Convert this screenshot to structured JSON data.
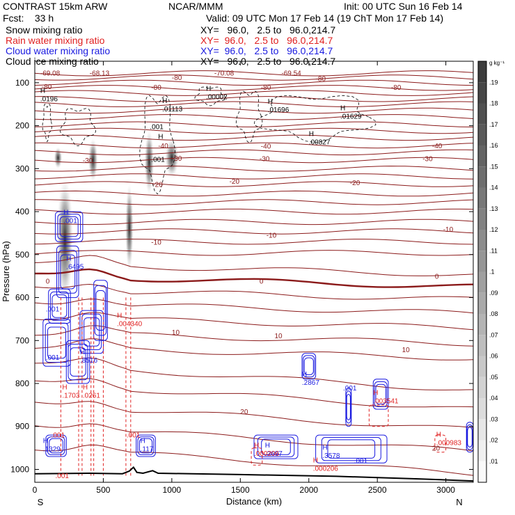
{
  "header": {
    "title": "CONTRAST 15km ARW",
    "institution": "NCAR/MMM",
    "init": "Init: 00 UTC Sun 16 Feb 14",
    "fcst": "Fcst:    33 h",
    "valid": "Valid: 09 UTC Mon 17 Feb 14 (19 ChT Mon 17 Feb 14)",
    "fields": [
      {
        "name": "Snow mixing ratio",
        "xy": "XY=   96.0,   2.5 to   96.0,214.7",
        "color": "#000000"
      },
      {
        "name": "Rain water mixing ratio",
        "xy": "XY=  96.0,   2.5 to   96.0,214.7",
        "color": "#e02020"
      },
      {
        "name": "Cloud water mixing ratio",
        "xy": "XY=  96.0,   2.5 to   96.0,214.7",
        "color": "#1a1ae0"
      },
      {
        "name": "Cloud ice mixing ratio",
        "xy": "XY=   96.0,   2.5 to   96.0,214.7",
        "color": "#000000"
      }
    ]
  },
  "chart_data": {
    "type": "contour",
    "xlabel": "Distance (km)",
    "ylabel": "Pressure (hPa)",
    "xlim": [
      0,
      3200
    ],
    "ylim": [
      1030,
      50
    ],
    "x_ticks": [
      0,
      500,
      1000,
      1500,
      2000,
      2500,
      3000
    ],
    "y_ticks": [
      100,
      200,
      300,
      400,
      500,
      600,
      700,
      800,
      900,
      1000
    ],
    "end_labels": {
      "left": "S",
      "right": "N"
    },
    "colorbar": {
      "unit": "g kg⁻¹",
      "ticks": [
        ".19",
        ".18",
        ".17",
        ".16",
        ".15",
        ".14",
        ".13",
        ".12",
        ".11",
        ".1",
        ".09",
        ".08",
        ".07",
        ".06",
        ".05",
        ".04",
        ".03",
        ".02",
        ".01"
      ]
    },
    "temperature_contours": {
      "color": "#8b1a1a",
      "levels": [
        -80,
        -70,
        -60,
        -50,
        -40,
        -30,
        -20,
        -10,
        0,
        10,
        20
      ],
      "labels": [
        {
          "text": "-69.08",
          "x": 40,
          "p": 77
        },
        {
          "text": "-68.13",
          "x": 400,
          "p": 77
        },
        {
          "text": "-70.08",
          "x": 1310,
          "p": 77
        },
        {
          "text": "-69.54",
          "x": 1800,
          "p": 77
        },
        {
          "text": "-80",
          "x": 50,
          "p": 108
        },
        {
          "text": "-80",
          "x": 1000,
          "p": 87
        },
        {
          "text": "-80",
          "x": 850,
          "p": 110
        },
        {
          "text": "-80",
          "x": 1650,
          "p": 110
        },
        {
          "text": "-80",
          "x": 2600,
          "p": 110
        },
        {
          "text": "-80",
          "x": 2050,
          "p": 90
        },
        {
          "text": "-40",
          "x": 900,
          "p": 246
        },
        {
          "text": "-40",
          "x": 1650,
          "p": 247
        },
        {
          "text": "-40",
          "x": 2900,
          "p": 246
        },
        {
          "text": "-30",
          "x": 350,
          "p": 280
        },
        {
          "text": "-30",
          "x": 1000,
          "p": 275
        },
        {
          "text": "-30",
          "x": 1640,
          "p": 276
        },
        {
          "text": "-30",
          "x": 2830,
          "p": 276
        },
        {
          "text": "-20",
          "x": 860,
          "p": 336
        },
        {
          "text": "-20",
          "x": 1420,
          "p": 329
        },
        {
          "text": "-20",
          "x": 2300,
          "p": 332
        },
        {
          "text": "-10",
          "x": 850,
          "p": 470
        },
        {
          "text": "-10",
          "x": 1690,
          "p": 454
        },
        {
          "text": "-10",
          "x": 2980,
          "p": 440
        },
        {
          "text": "0",
          "x": 80,
          "p": 561
        },
        {
          "text": "0",
          "x": 1640,
          "p": 561
        },
        {
          "text": "0",
          "x": 2920,
          "p": 550
        },
        {
          "text": "10",
          "x": 1000,
          "p": 680
        },
        {
          "text": "10",
          "x": 1750,
          "p": 688
        },
        {
          "text": "10",
          "x": 2680,
          "p": 721
        },
        {
          "text": "20",
          "x": 1500,
          "p": 865
        },
        {
          "text": "20",
          "x": 2900,
          "p": 950
        }
      ]
    },
    "snow_shading": [
      {
        "x": 160,
        "p": 320,
        "x2": 280,
        "p2": 610
      },
      {
        "x": 140,
        "p": 250,
        "x2": 200,
        "p2": 300
      },
      {
        "x": 390,
        "p": 230,
        "x2": 460,
        "p2": 330
      },
      {
        "x": 660,
        "p": 335,
        "x2": 720,
        "p2": 540
      },
      {
        "x": 800,
        "p": 210,
        "x2": 870,
        "p2": 360
      },
      {
        "x": 950,
        "p": 230,
        "x2": 1050,
        "p2": 320
      }
    ],
    "cloud_ice_maxima": [
      {
        "label": "H",
        "value": ".0196",
        "x": 40,
        "p": 140
      },
      {
        "label": "H",
        "value": ".01113",
        "x": 930,
        "p": 163
      },
      {
        "label": "H",
        "value": ".00002",
        "x": 1250,
        "p": 135
      },
      {
        "label": "H",
        "value": ".01696",
        "x": 1700,
        "p": 165
      },
      {
        "label": "H",
        "value": ".01629",
        "x": 2230,
        "p": 180
      },
      {
        "label": "H",
        "value": ".00827",
        "x": 2000,
        "p": 240
      },
      {
        "label": "",
        "value": ".001",
        "x": 840,
        "p": 205
      },
      {
        "label": "",
        "value": ".001",
        "x": 850,
        "p": 281
      },
      {
        "label": "H",
        "value": "",
        "x": 900,
        "p": 247
      }
    ],
    "cloud_water_maxima": [
      {
        "label": "H",
        "value": ".001",
        "x": 210,
        "p": 423
      },
      {
        "label": "H",
        "value": ".6495",
        "x": 230,
        "p": 530
      },
      {
        "label": "",
        "value": ".001",
        "x": 80,
        "p": 629
      },
      {
        "label": "",
        "value": ".001",
        "x": 80,
        "p": 742
      },
      {
        "label": "H",
        "value": ".8516",
        "x": 330,
        "p": 748
      },
      {
        "label": "H",
        "value": ".2867",
        "x": 1950,
        "p": 800
      },
      {
        "label": "",
        "value": ".001",
        "x": 2250,
        "p": 813
      },
      {
        "label": "H",
        "value": ".1329",
        "x": 60,
        "p": 955
      },
      {
        "label": "H",
        "value": ".117",
        "x": 770,
        "p": 955
      },
      {
        "label": "H",
        "value": ".2697",
        "x": 1680,
        "p": 965
      },
      {
        "label": "H",
        "value": ".3578",
        "x": 2100,
        "p": 970
      },
      {
        "label": "",
        "value": ".001",
        "x": 2330,
        "p": 982
      }
    ],
    "rain_water_maxima": [
      {
        "label": "H",
        "value": ".004340",
        "x": 600,
        "p": 663
      },
      {
        "label": "H",
        "value": ".1703",
        "x": 200,
        "p": 830
      },
      {
        "label": "H",
        "value": ".0261",
        "x": 350,
        "p": 830
      },
      {
        "label": "H",
        "value": ".003541",
        "x": 2470,
        "p": 843
      },
      {
        "label": "H",
        "value": ".000983",
        "x": 2930,
        "p": 940
      },
      {
        "label": "H",
        "value": ".000206",
        "x": 1600,
        "p": 965
      },
      {
        "label": "H",
        "value": ".000206",
        "x": 2030,
        "p": 1000
      },
      {
        "label": "",
        "value": ".001",
        "x": 120,
        "p": 922
      },
      {
        "label": "",
        "value": ".001",
        "x": 670,
        "p": 922
      },
      {
        "label": "",
        "value": ".001",
        "x": 150,
        "p": 1017
      }
    ]
  }
}
